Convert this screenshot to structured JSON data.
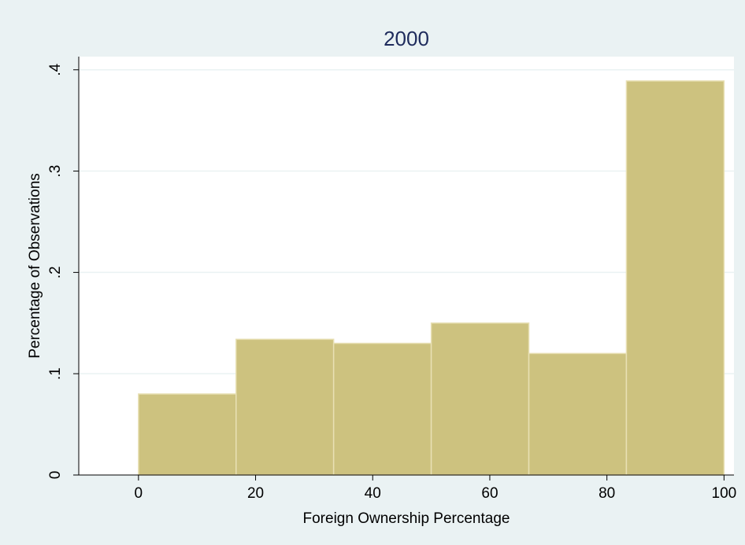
{
  "chart_data": {
    "type": "histogram",
    "title": "2000",
    "x_label": "Foreign Ownership Percentage",
    "y_label": "Percentage of Observations",
    "bins": [
      0,
      16.67,
      33.33,
      50,
      66.67,
      83.33,
      100
    ],
    "values": [
      0.08,
      0.134,
      0.13,
      0.15,
      0.12,
      0.389
    ],
    "color": "#cdc27f",
    "xlim": [
      -10.2,
      101.7
    ],
    "xticks": [
      0,
      20,
      40,
      60,
      80,
      100
    ],
    "ylim": [
      0,
      0.413
    ],
    "yticks": [
      0,
      {
        "value": 0.1,
        "label": ".1"
      },
      {
        "value": 0.2,
        "label": ".2"
      },
      {
        "value": 0.3,
        "label": ".3"
      },
      {
        "value": 0.4,
        "label": ".4"
      }
    ],
    "grid": true
  }
}
